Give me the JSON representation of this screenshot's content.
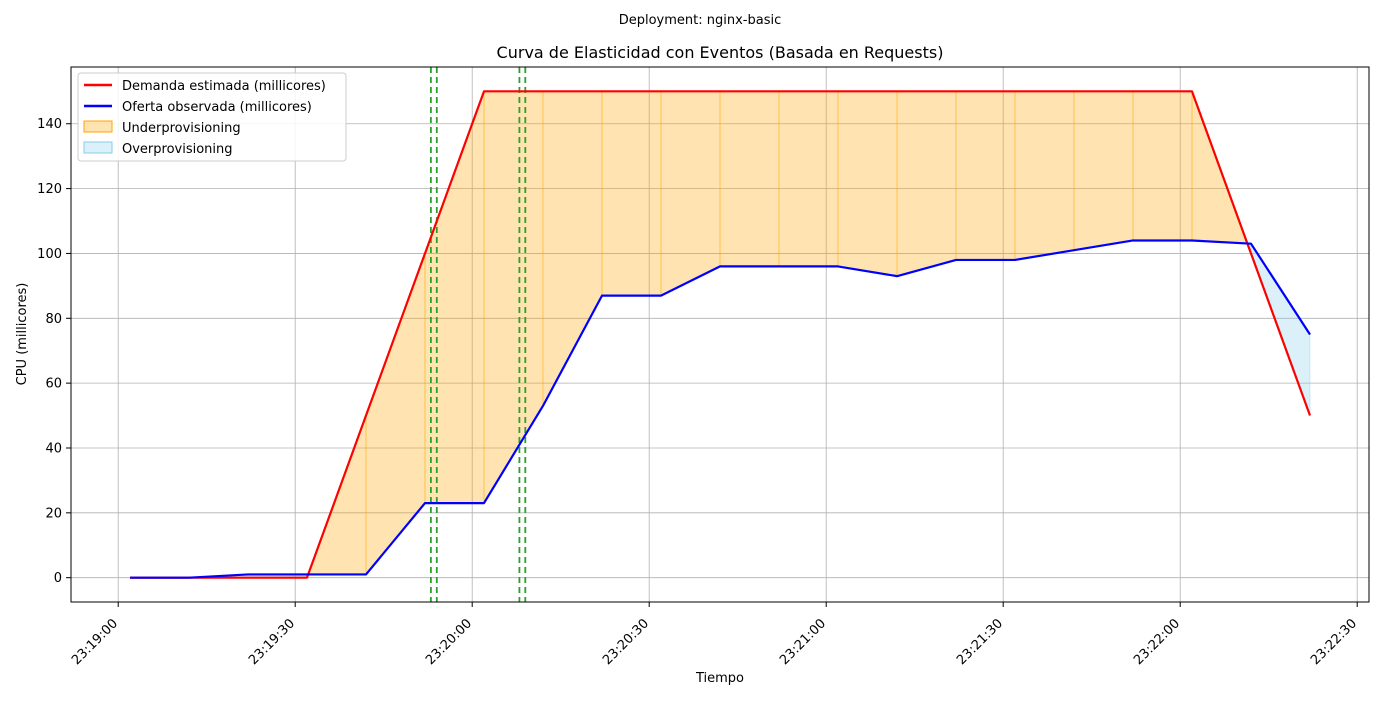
{
  "suptitle": "Deployment: nginx-basic",
  "chart_data": {
    "type": "line",
    "title": "Curva de Elasticidad con Eventos (Basada en Requests)",
    "xlabel": "Tiempo",
    "ylabel": "CPU (millicores)",
    "xlim": [
      "23:18:52",
      "23:22:32"
    ],
    "ylim": [
      -7.5,
      157.5
    ],
    "grid": true,
    "legend_position": "upper-left",
    "x_ticks": [
      "23:19:00",
      "23:19:30",
      "23:20:00",
      "23:20:30",
      "23:21:00",
      "23:21:30",
      "23:22:00",
      "23:22:30"
    ],
    "y_ticks": [
      0,
      20,
      40,
      60,
      80,
      100,
      120,
      140
    ],
    "x": [
      "23:19:02",
      "23:19:12",
      "23:19:22",
      "23:19:32",
      "23:19:42",
      "23:19:52",
      "23:20:02",
      "23:20:12",
      "23:20:22",
      "23:20:32",
      "23:20:42",
      "23:20:52",
      "23:21:02",
      "23:21:12",
      "23:21:22",
      "23:21:32",
      "23:21:42",
      "23:21:52",
      "23:22:02",
      "23:22:12",
      "23:22:22"
    ],
    "series": [
      {
        "name": "Demanda estimada (millicores)",
        "color": "#ff0000",
        "values": [
          0,
          0,
          0,
          0,
          50,
          100,
          150,
          150,
          150,
          150,
          150,
          150,
          150,
          150,
          150,
          150,
          150,
          150,
          150,
          100,
          50
        ]
      },
      {
        "name": "Oferta observada (millicores)",
        "color": "#0000ff",
        "values": [
          0,
          0,
          1,
          1,
          1,
          23,
          23,
          53,
          87,
          87,
          96,
          96,
          96,
          93,
          98,
          98,
          101,
          104,
          104,
          103,
          75
        ]
      }
    ],
    "fills": [
      {
        "name": "Underprovisioning",
        "color": "#ffa500",
        "condition": "demand_above_supply"
      },
      {
        "name": "Overprovisioning",
        "color": "#87ceeb",
        "condition": "supply_above_demand"
      }
    ],
    "event_lines": {
      "color": "#2ca02c",
      "style": "dashed",
      "times": [
        "23:19:53",
        "23:19:54",
        "23:20:08",
        "23:20:09"
      ]
    }
  }
}
